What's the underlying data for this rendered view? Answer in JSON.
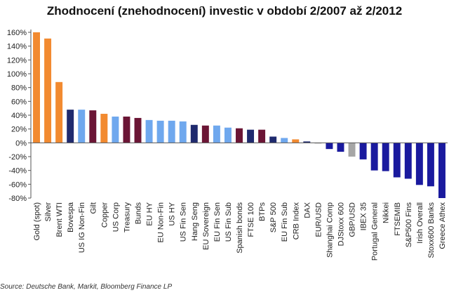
{
  "chart_data": {
    "type": "bar",
    "title": "Zhodnocení (znehodnocení) investic v období 2/2007 až 2/2012",
    "source": "Source: Deutsche Bank, Markit, Bloomberg Finance LP",
    "ylim": [
      -80,
      160
    ],
    "y_ticks": [
      -80,
      -60,
      -40,
      -20,
      0,
      20,
      40,
      60,
      80,
      100,
      120,
      140,
      160
    ],
    "y_tick_format": "percent",
    "grid": false,
    "legend": "none",
    "colors": {
      "orange": "#f28a30",
      "navy": "#1f2a6e",
      "maroon": "#6b1535",
      "lightblue": "#6fa8ee",
      "gray": "#a6a6a6",
      "darkblue": "#1a1a9e"
    },
    "categories": [
      "Gold (spot)",
      "Silver",
      "Brent WTI",
      "Bovespa",
      "US IG Non-Fin",
      "Gilt",
      "Copper",
      "US Corp",
      "Treasury",
      "Bunds",
      "EU HY",
      "EU Non-Fin",
      "US HY",
      "US Fin Sen",
      "Hang Seng",
      "EU Sovereign",
      "EU Fin Sen",
      "US Fin Sub",
      "Spanish bonds",
      "FTSE 100",
      "BTPs",
      "S&P 500",
      "EU Fin Sub",
      "CRB Index",
      "DAX",
      "EUR/USD",
      "Shanghai Comp",
      "DJStoxx 600",
      "GBP/USD",
      "IBEX 35",
      "Portugal General",
      "Nikkei",
      "FTSEMIB",
      "S&P500 Fins",
      "Irish Overall",
      "Stoxx600 Banks",
      "Greece Athex"
    ],
    "values": [
      160,
      151,
      88,
      48,
      48,
      47,
      42,
      38,
      38,
      36,
      33,
      32,
      32,
      31,
      26,
      25,
      25,
      22,
      21,
      19,
      19,
      9,
      7,
      5,
      2,
      -1,
      -9,
      -13,
      -20,
      -24,
      -40,
      -41,
      -50,
      -52,
      -61,
      -63,
      -80
    ],
    "bar_colors": [
      "orange",
      "orange",
      "orange",
      "navy",
      "lightblue",
      "maroon",
      "orange",
      "lightblue",
      "maroon",
      "maroon",
      "lightblue",
      "lightblue",
      "lightblue",
      "lightblue",
      "navy",
      "maroon",
      "lightblue",
      "lightblue",
      "maroon",
      "navy",
      "maroon",
      "navy",
      "lightblue",
      "orange",
      "navy",
      "gray",
      "darkblue",
      "darkblue",
      "gray",
      "darkblue",
      "darkblue",
      "darkblue",
      "darkblue",
      "darkblue",
      "darkblue",
      "darkblue",
      "darkblue"
    ]
  }
}
